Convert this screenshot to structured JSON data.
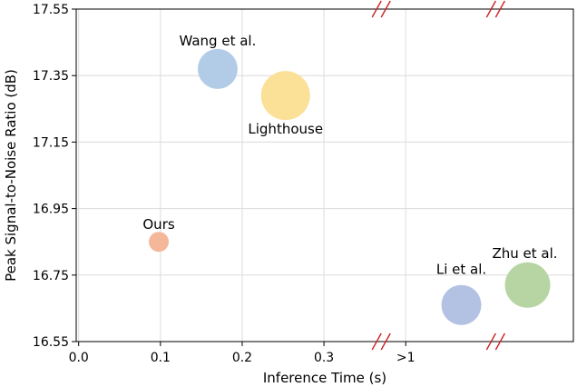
{
  "chart_data": {
    "type": "scatter",
    "xlabel": "Inference Time (s)",
    "ylabel": "Peak Signal-to-Noise Ratio (dB)",
    "ylim": [
      16.55,
      17.55
    ],
    "x_ticks": [
      {
        "label": "0.0",
        "pos": 0.0
      },
      {
        "label": "0.1",
        "pos": 0.1
      },
      {
        "label": "0.2",
        "pos": 0.2
      },
      {
        "label": "0.3",
        "pos": 0.3
      },
      {
        "label": ">1",
        "pos": 0.4
      }
    ],
    "y_ticks": [
      16.55,
      16.75,
      16.95,
      17.15,
      17.35,
      17.55
    ],
    "axis_breaks": [
      0.37,
      0.51
    ],
    "points": [
      {
        "name": "Ours",
        "x": 0.098,
        "y": 16.85,
        "radius": 11,
        "color": "#f4b79a"
      },
      {
        "name": "Wang et al.",
        "x": 0.17,
        "y": 17.37,
        "radius": 22,
        "color": "#b2cce8"
      },
      {
        "name": "Lighthouse",
        "x": 0.253,
        "y": 17.29,
        "radius": 27,
        "color": "#fbe098"
      },
      {
        "name": "Li et al.",
        "x": 0.468,
        "y": 16.66,
        "radius": 22,
        "color": "#b3c2e3"
      },
      {
        "name": "Zhu et al.",
        "x": 0.549,
        "y": 16.72,
        "radius": 25,
        "color": "#b7d5a3"
      }
    ],
    "grid": true
  }
}
